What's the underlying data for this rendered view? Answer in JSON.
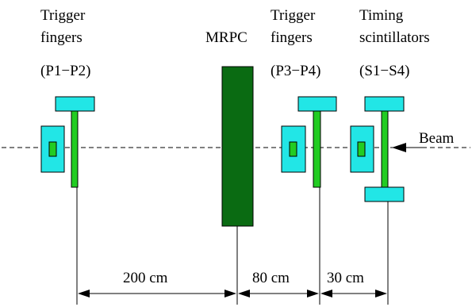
{
  "labels": {
    "trigger_left_line1": "Trigger",
    "trigger_left_line2": "fingers",
    "trigger_left_range": "(P1−P2)",
    "mrpc": "MRPC",
    "trigger_right_line1": "Trigger",
    "trigger_right_line2": "fingers",
    "trigger_right_range": "(P3−P4)",
    "timing_line1": "Timing",
    "timing_line2": "scintillators",
    "timing_range": "(S1−S4)",
    "beam": "Beam"
  },
  "distances": {
    "d1": "200 cm",
    "d2": "80 cm",
    "d3": "30 cm"
  },
  "colors": {
    "cyan": "#22e6e6",
    "green": "#22cc22",
    "dark_green": "#0a6b12"
  }
}
